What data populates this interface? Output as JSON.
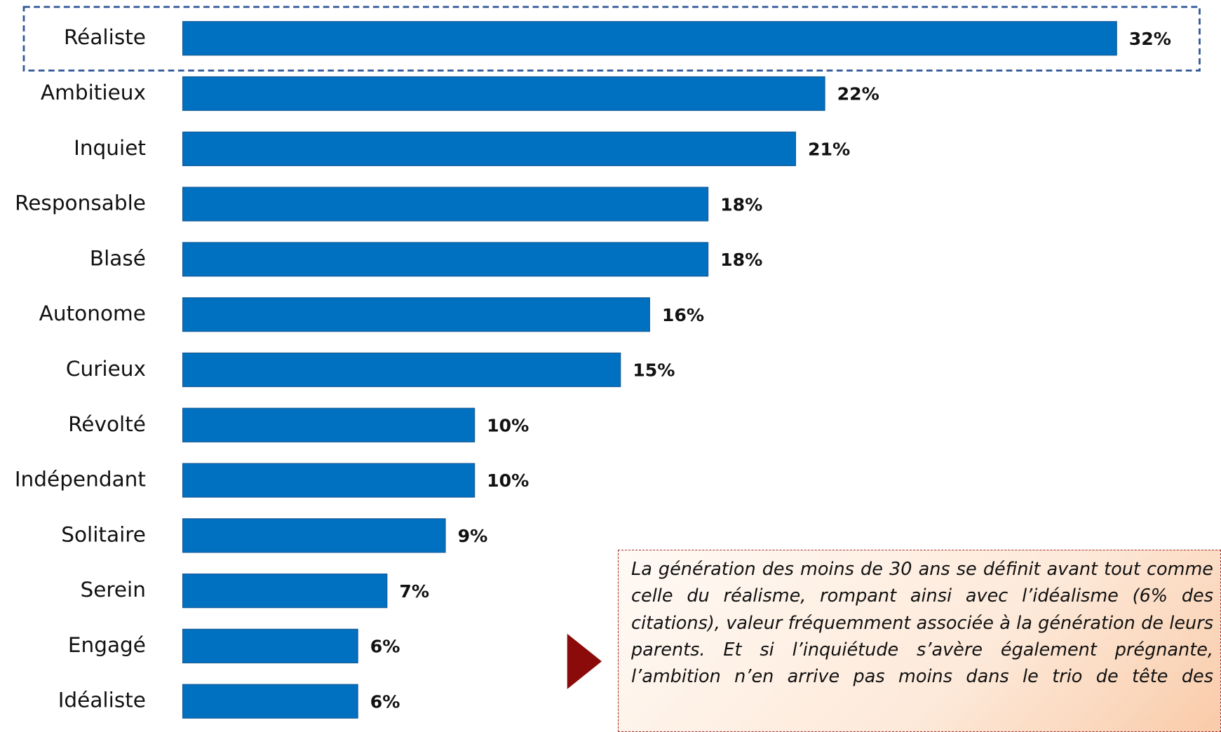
{
  "chart_data": {
    "type": "bar",
    "orientation": "horizontal",
    "categories": [
      "Réaliste",
      "Ambitieux",
      "Inquiet",
      "Responsable",
      "Blasé",
      "Autonome",
      "Curieux",
      "Révolté",
      "Indépendant",
      "Solitaire",
      "Serein",
      "Engagé",
      "Idéaliste"
    ],
    "values": [
      32,
      22,
      21,
      18,
      18,
      16,
      15,
      10,
      10,
      9,
      7,
      6,
      6
    ],
    "value_labels": [
      "32%",
      "22%",
      "21%",
      "18%",
      "18%",
      "16%",
      "15%",
      "10%",
      "10%",
      "9%",
      "7%",
      "6%",
      "6%"
    ],
    "color": "#0070c0",
    "annotation": "La génération des moins de 30 ans se définit avant tout comme celle du réalisme, rompant ainsi avec l’idéalisme (6% des citations), valeur fréquemment associée à la génération de leurs parents. Et si l’inquiétude s’avère également prégnante, l’ambition n’en arrive pas moins dans le trio de tête des"
  }
}
